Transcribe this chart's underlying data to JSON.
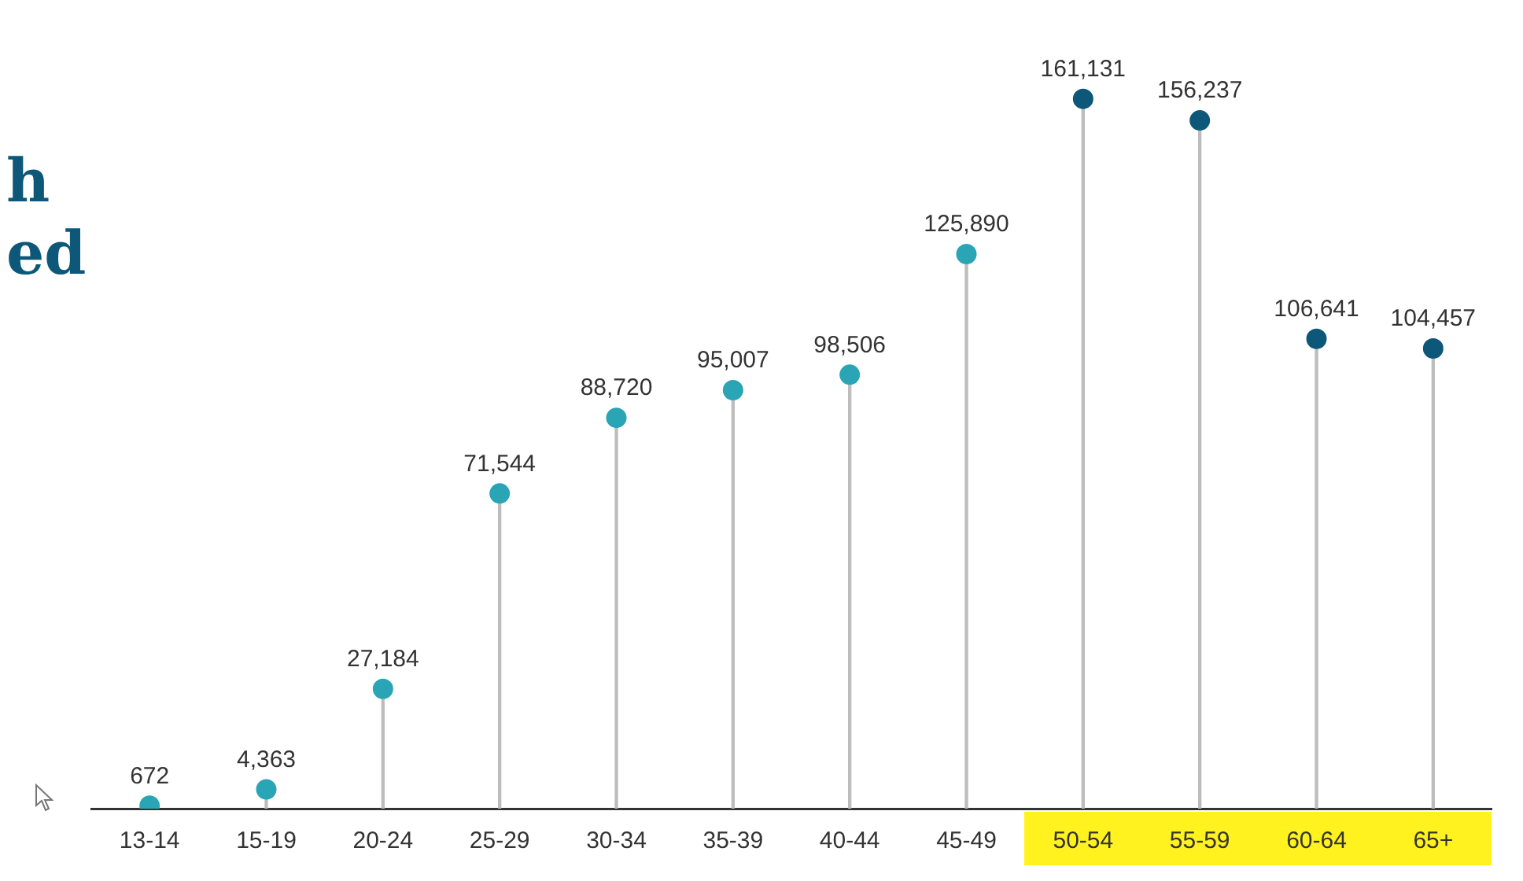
{
  "chart_data": {
    "type": "lollipop",
    "annotations": [
      "h",
      "ed"
    ],
    "categories": [
      "13-14",
      "15-19",
      "20-24",
      "25-29",
      "30-34",
      "35-39",
      "40-44",
      "45-49",
      "50-54",
      "55-59",
      "60-64",
      "65+"
    ],
    "values": [
      672,
      4363,
      27184,
      71544,
      88720,
      95007,
      98506,
      125890,
      161131,
      156237,
      106641,
      104457
    ],
    "value_labels": [
      "672",
      "4,363",
      "27,184",
      "71,544",
      "88,720",
      "95,007",
      "98,506",
      "125,890",
      "161,131",
      "156,237",
      "106,641",
      "104,457"
    ],
    "colors": [
      "#2aa5b5",
      "#2aa5b5",
      "#2aa5b5",
      "#2aa5b5",
      "#2aa5b5",
      "#2aa5b5",
      "#2aa5b5",
      "#2aa5b5",
      "#0d5878",
      "#0d5878",
      "#0d5878",
      "#0d5878"
    ],
    "legend": false
  }
}
